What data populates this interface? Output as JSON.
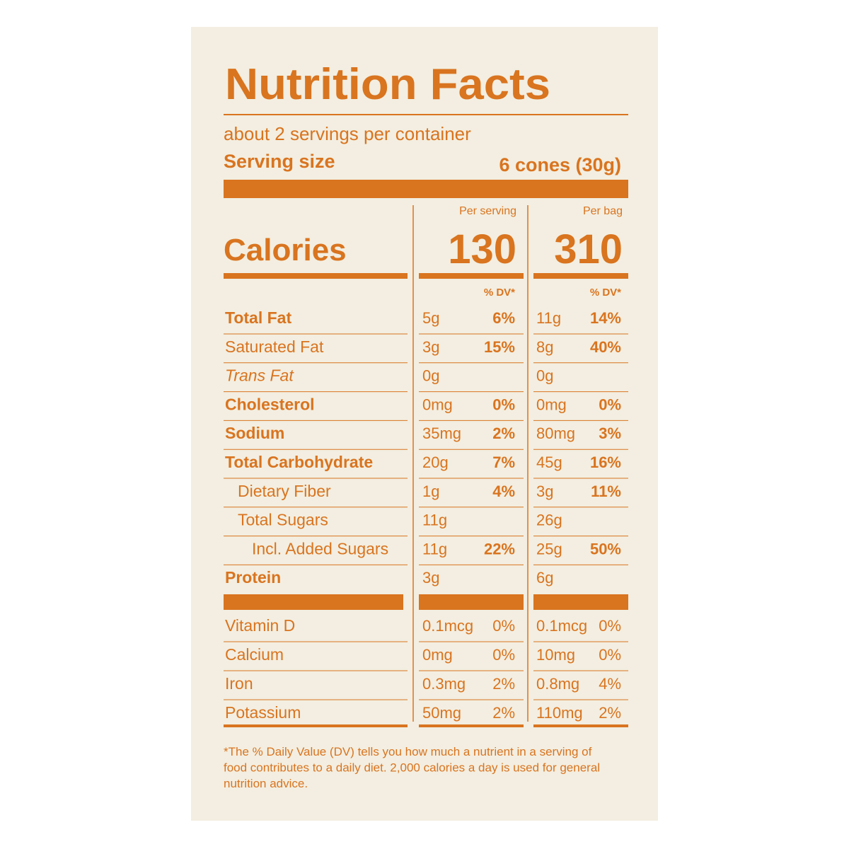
{
  "header": {
    "title": "Nutrition Facts",
    "servings": "about 2 servings per container",
    "serving_size_label": "Serving size",
    "serving_size_value": "6 cones (30g)"
  },
  "calories": {
    "label": "Calories",
    "columns": [
      {
        "heading": "Per serving",
        "value": "130",
        "dv_heading": "% DV*"
      },
      {
        "heading": "Per bag",
        "value": "310",
        "dv_heading": "% DV*"
      }
    ]
  },
  "nutrients": [
    {
      "name": "Total Fat",
      "style": "bold",
      "indent": 0,
      "cells": [
        {
          "amount": "5g",
          "dv": "6%"
        },
        {
          "amount": "11g",
          "dv": "14%"
        }
      ]
    },
    {
      "name": "Saturated Fat",
      "style": "normal",
      "indent": 0,
      "cells": [
        {
          "amount": "3g",
          "dv": "15%"
        },
        {
          "amount": "8g",
          "dv": "40%"
        }
      ]
    },
    {
      "name": "Trans Fat",
      "style": "italic",
      "indent": 0,
      "cells": [
        {
          "amount": "0g"
        },
        {
          "amount": "0g"
        }
      ]
    },
    {
      "name": "Cholesterol",
      "style": "bold",
      "indent": 0,
      "cells": [
        {
          "amount": "0mg",
          "dv": "0%"
        },
        {
          "amount": "0mg",
          "dv": "0%"
        }
      ]
    },
    {
      "name": "Sodium",
      "style": "bold",
      "indent": 0,
      "cells": [
        {
          "amount": "35mg",
          "dv": "2%"
        },
        {
          "amount": "80mg",
          "dv": "3%"
        }
      ]
    },
    {
      "name": "Total Carbohydrate",
      "style": "bold",
      "indent": 0,
      "cells": [
        {
          "amount": "20g",
          "dv": "7%"
        },
        {
          "amount": "45g",
          "dv": "16%"
        }
      ]
    },
    {
      "name": "Dietary Fiber",
      "style": "normal",
      "indent": 1,
      "cells": [
        {
          "amount": "1g",
          "dv": "4%"
        },
        {
          "amount": "3g",
          "dv": "11%"
        }
      ]
    },
    {
      "name": "Total Sugars",
      "style": "normal",
      "indent": 1,
      "cells": [
        {
          "amount": "11g"
        },
        {
          "amount": "26g"
        }
      ]
    },
    {
      "name": "Incl. Added Sugars",
      "style": "normal",
      "indent": 2,
      "cells": [
        {
          "amount": "11g",
          "dv": "22%"
        },
        {
          "amount": "25g",
          "dv": "50%"
        }
      ]
    },
    {
      "name": "Protein",
      "style": "bold",
      "indent": 0,
      "cells": [
        {
          "amount": "3g"
        },
        {
          "amount": "6g"
        }
      ]
    }
  ],
  "vitamins": [
    {
      "name": "Vitamin D",
      "style": "normal",
      "indent": 0,
      "cells": [
        {
          "amount": "0.1mcg",
          "dv": "0%"
        },
        {
          "amount": "0.1mcg",
          "dv": "0%"
        }
      ]
    },
    {
      "name": "Calcium",
      "style": "normal",
      "indent": 0,
      "cells": [
        {
          "amount": "0mg",
          "dv": "0%"
        },
        {
          "amount": "10mg",
          "dv": "0%"
        }
      ]
    },
    {
      "name": "Iron",
      "style": "normal",
      "indent": 0,
      "cells": [
        {
          "amount": "0.3mg",
          "dv": "2%"
        },
        {
          "amount": "0.8mg",
          "dv": "4%"
        }
      ]
    },
    {
      "name": "Potassium",
      "style": "normal",
      "indent": 0,
      "cells": [
        {
          "amount": "50mg",
          "dv": "2%"
        },
        {
          "amount": "110mg",
          "dv": "2%"
        }
      ]
    }
  ],
  "footnote": [
    "*The % Daily Value (DV) tells you how much a nutrient in a serving of",
    "food contributes to a daily diet. 2,000 calories a day is used for general",
    "nutrition advice."
  ]
}
